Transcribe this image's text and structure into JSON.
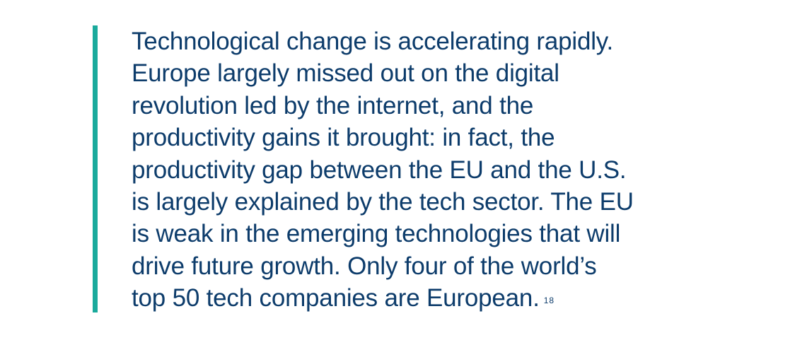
{
  "quote": {
    "accent_color": "#1aaa9c",
    "text_color": "#0d3c6b",
    "lines": [
      "Technological change is accelerating rapidly.",
      "Europe largely missed out on the digital",
      "revolution led by the internet, and the",
      "productivity gains it brought: in fact, the",
      "productivity gap between the EU and the U.S.",
      "is largely explained by the tech sector. The EU",
      "is weak in the emerging technologies that will",
      "drive future growth. Only four of the world’s",
      "top 50 tech companies are European."
    ],
    "footnote": "18"
  }
}
